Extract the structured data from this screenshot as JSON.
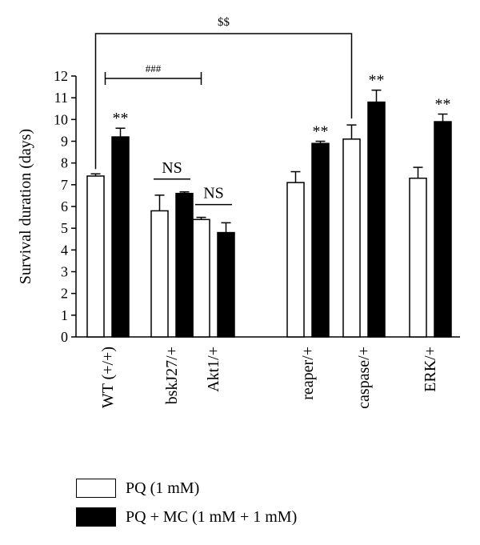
{
  "colors": {
    "pq": "#ffffff",
    "pq_mc": "#000000",
    "stroke": "#000000"
  },
  "chart_data": {
    "type": "bar",
    "ylabel": "Survival duration (days)",
    "ylim": [
      0,
      12
    ],
    "yticks": [
      0,
      1,
      2,
      3,
      4,
      5,
      6,
      7,
      8,
      9,
      10,
      11,
      12
    ],
    "categories": [
      "WT (+/+)",
      "bskJ27/+",
      "Akt1/+",
      "reaper/+",
      "caspase/+",
      "ERK/+"
    ],
    "series": [
      {
        "name": "PQ (1 mM)",
        "fill": "#ffffff",
        "values": [
          7.4,
          5.8,
          5.4,
          7.1,
          9.1,
          7.3
        ],
        "errors": [
          0.1,
          0.72,
          0.1,
          0.5,
          0.65,
          0.5
        ]
      },
      {
        "name": "PQ + MC (1 mM + 1 mM)",
        "fill": "#000000",
        "values": [
          9.2,
          6.6,
          4.8,
          8.9,
          10.8,
          9.9
        ],
        "errors": [
          0.4,
          0.07,
          0.45,
          0.1,
          0.55,
          0.35
        ]
      }
    ],
    "significance": [
      {
        "label": "**",
        "category": 0,
        "series": 1
      },
      {
        "label": "**",
        "category": 3,
        "series": 1
      },
      {
        "label": "**",
        "category": 4,
        "series": 1
      },
      {
        "label": "**",
        "category": 5,
        "series": 1
      },
      {
        "label": "NS",
        "category": 1
      },
      {
        "label": "NS",
        "category": 2
      }
    ],
    "brackets": [
      {
        "label": "###",
        "from": 0,
        "to": 2
      },
      {
        "label": "$$",
        "from": 0,
        "to": 4
      }
    ]
  }
}
